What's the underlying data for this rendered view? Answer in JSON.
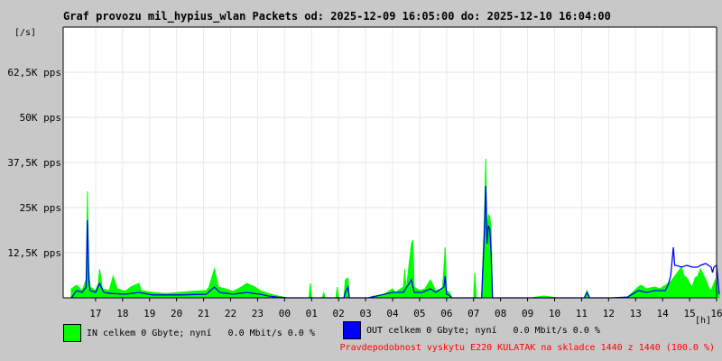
{
  "header": {
    "title": "Graf provozu mil_hypius_wlan Packets od: 2025-12-09 16:05:00 do: 2025-12-10 16:04:00",
    "y_unit": "[/s]",
    "x_unit": "[h]"
  },
  "legend": {
    "in_label": "IN celkem 0 Gbyte; nyní   0.0 Mbit/s 0.0 %",
    "out_label": "OUT celkem 0 Gbyte; nyní   0.0 Mbit/s 0.0 %"
  },
  "note": "Pravdepodobnost vyskytu E220 KULATAK na skladce 1440 z 1440 (100.0 %)",
  "colors": {
    "in": "#00ff00",
    "out": "#0000ff",
    "note": "#ff0000",
    "plot_bg": "#ffffff",
    "page_bg": "#c8c8c8"
  },
  "chart_data": {
    "type": "area",
    "ylim": [
      0,
      75000
    ],
    "xlim": [
      0,
      24
    ],
    "x_unit": "hours from 16:05",
    "yticks": [
      {
        "value": 12500,
        "label": "12,5K pps"
      },
      {
        "value": 25000,
        "label": "25K pps"
      },
      {
        "value": 37500,
        "label": "37,5K pps"
      },
      {
        "value": 50000,
        "label": "50K pps"
      },
      {
        "value": 62500,
        "label": "62,5K pps"
      }
    ],
    "xticks": [
      "17",
      "18",
      "19",
      "20",
      "21",
      "22",
      "23",
      "00",
      "01",
      "02",
      "03",
      "04",
      "05",
      "06",
      "07",
      "08",
      "09",
      "10",
      "11",
      "12",
      "13",
      "14",
      "15",
      "16"
    ],
    "grid": true,
    "series": [
      {
        "name": "IN",
        "color": "#00ff00",
        "style": "filled",
        "points": [
          [
            0.0,
            0
          ],
          [
            0.0,
            2500
          ],
          [
            0.2,
            3500
          ],
          [
            0.4,
            2000
          ],
          [
            0.55,
            5000
          ],
          [
            0.6,
            29500
          ],
          [
            0.65,
            8000
          ],
          [
            0.7,
            3000
          ],
          [
            0.9,
            2000
          ],
          [
            1.0,
            4000
          ],
          [
            1.05,
            8000
          ],
          [
            1.15,
            2500
          ],
          [
            1.4,
            2000
          ],
          [
            1.55,
            6000
          ],
          [
            1.7,
            2500
          ],
          [
            2.0,
            1800
          ],
          [
            2.2,
            3000
          ],
          [
            2.5,
            4000
          ],
          [
            2.6,
            2000
          ],
          [
            3.0,
            1500
          ],
          [
            3.5,
            1200
          ],
          [
            4.0,
            1500
          ],
          [
            4.5,
            1800
          ],
          [
            5.0,
            2000
          ],
          [
            5.1,
            3000
          ],
          [
            5.3,
            8000
          ],
          [
            5.45,
            3000
          ],
          [
            5.7,
            2500
          ],
          [
            6.0,
            1800
          ],
          [
            6.3,
            3000
          ],
          [
            6.5,
            4000
          ],
          [
            6.8,
            3000
          ],
          [
            7.0,
            2000
          ],
          [
            7.3,
            1200
          ],
          [
            7.6,
            600
          ],
          [
            8.0,
            0
          ],
          [
            8.8,
            0
          ],
          [
            8.85,
            4000
          ],
          [
            8.9,
            0
          ],
          [
            9.3,
            0
          ],
          [
            9.35,
            1500
          ],
          [
            9.4,
            0
          ],
          [
            9.8,
            0
          ],
          [
            9.85,
            3000
          ],
          [
            9.9,
            0
          ],
          [
            10.1,
            0
          ],
          [
            10.15,
            5000
          ],
          [
            10.25,
            5500
          ],
          [
            10.3,
            0
          ],
          [
            11.0,
            0
          ],
          [
            11.2,
            500
          ],
          [
            11.5,
            500
          ],
          [
            11.9,
            2500
          ],
          [
            12.0,
            1500
          ],
          [
            12.3,
            3000
          ],
          [
            12.35,
            8000
          ],
          [
            12.4,
            2000
          ],
          [
            12.6,
            15000
          ],
          [
            12.65,
            16000
          ],
          [
            12.7,
            3000
          ],
          [
            12.9,
            2000
          ],
          [
            13.1,
            2500
          ],
          [
            13.3,
            5000
          ],
          [
            13.5,
            2000
          ],
          [
            13.75,
            2500
          ],
          [
            13.8,
            8000
          ],
          [
            13.85,
            14000
          ],
          [
            13.9,
            2000
          ],
          [
            14.0,
            1500
          ],
          [
            14.1,
            0
          ],
          [
            14.9,
            0
          ],
          [
            14.95,
            7000
          ],
          [
            15.0,
            0
          ],
          [
            15.2,
            0
          ],
          [
            15.3,
            22000
          ],
          [
            15.35,
            38500
          ],
          [
            15.4,
            18000
          ],
          [
            15.45,
            23000
          ],
          [
            15.5,
            22500
          ],
          [
            15.55,
            19000
          ],
          [
            15.6,
            0
          ],
          [
            15.9,
            0
          ],
          [
            17.0,
            0
          ],
          [
            17.5,
            500
          ],
          [
            18.0,
            0
          ],
          [
            19.0,
            0
          ],
          [
            19.1,
            2000
          ],
          [
            19.2,
            0
          ],
          [
            20.0,
            0
          ],
          [
            20.6,
            200
          ],
          [
            21.0,
            3000
          ],
          [
            21.1,
            3500
          ],
          [
            21.3,
            2500
          ],
          [
            21.6,
            3000
          ],
          [
            21.8,
            2500
          ],
          [
            22.0,
            3500
          ],
          [
            22.2,
            4500
          ],
          [
            22.3,
            5500
          ],
          [
            22.4,
            6500
          ],
          [
            22.6,
            8500
          ],
          [
            22.7,
            6000
          ],
          [
            22.8,
            5500
          ],
          [
            22.9,
            4000
          ],
          [
            23.0,
            3000
          ],
          [
            23.1,
            5500
          ],
          [
            23.2,
            6000
          ],
          [
            23.3,
            8000
          ],
          [
            23.5,
            5000
          ],
          [
            23.6,
            3000
          ],
          [
            23.7,
            2000
          ],
          [
            23.85,
            5000
          ],
          [
            23.9,
            3000
          ],
          [
            24.0,
            500
          ],
          [
            24.0,
            0
          ]
        ]
      },
      {
        "name": "OUT",
        "color": "#0000ff",
        "style": "line",
        "points": [
          [
            0.0,
            0
          ],
          [
            0.2,
            2000
          ],
          [
            0.4,
            1500
          ],
          [
            0.55,
            3000
          ],
          [
            0.6,
            21500
          ],
          [
            0.65,
            5000
          ],
          [
            0.7,
            2000
          ],
          [
            0.9,
            1500
          ],
          [
            1.05,
            4000
          ],
          [
            1.2,
            1500
          ],
          [
            1.5,
            1200
          ],
          [
            2.0,
            1000
          ],
          [
            2.5,
            1500
          ],
          [
            3.0,
            800
          ],
          [
            4.0,
            800
          ],
          [
            5.0,
            1000
          ],
          [
            5.3,
            3000
          ],
          [
            5.5,
            1500
          ],
          [
            6.0,
            1000
          ],
          [
            6.5,
            1500
          ],
          [
            7.0,
            1000
          ],
          [
            7.3,
            500
          ],
          [
            7.6,
            200
          ],
          [
            8.0,
            0
          ],
          [
            10.1,
            0
          ],
          [
            10.15,
            1500
          ],
          [
            10.25,
            3000
          ],
          [
            10.3,
            0
          ],
          [
            11.0,
            0
          ],
          [
            11.9,
            1500
          ],
          [
            12.3,
            1500
          ],
          [
            12.6,
            5000
          ],
          [
            12.7,
            1500
          ],
          [
            13.0,
            1500
          ],
          [
            13.3,
            2500
          ],
          [
            13.5,
            1500
          ],
          [
            13.8,
            3000
          ],
          [
            13.85,
            6000
          ],
          [
            13.9,
            1000
          ],
          [
            14.0,
            700
          ],
          [
            14.1,
            0
          ],
          [
            15.2,
            0
          ],
          [
            15.3,
            18000
          ],
          [
            15.35,
            31000
          ],
          [
            15.4,
            15000
          ],
          [
            15.45,
            20000
          ],
          [
            15.5,
            19000
          ],
          [
            15.55,
            12000
          ],
          [
            15.6,
            0
          ],
          [
            17.0,
            0
          ],
          [
            19.0,
            0
          ],
          [
            19.1,
            1500
          ],
          [
            19.2,
            0
          ],
          [
            20.0,
            0
          ],
          [
            20.6,
            200
          ],
          [
            21.0,
            2000
          ],
          [
            21.3,
            1500
          ],
          [
            21.6,
            2000
          ],
          [
            22.0,
            2000
          ],
          [
            22.1,
            3500
          ],
          [
            22.2,
            6000
          ],
          [
            22.3,
            14000
          ],
          [
            22.35,
            9000
          ],
          [
            22.4,
            9000
          ],
          [
            22.6,
            8500
          ],
          [
            22.8,
            9000
          ],
          [
            23.0,
            8500
          ],
          [
            23.2,
            8500
          ],
          [
            23.3,
            9000
          ],
          [
            23.5,
            9500
          ],
          [
            23.6,
            9000
          ],
          [
            23.7,
            8500
          ],
          [
            23.75,
            7000
          ],
          [
            23.8,
            8500
          ],
          [
            23.9,
            9000
          ],
          [
            24.0,
            1000
          ]
        ]
      }
    ]
  }
}
